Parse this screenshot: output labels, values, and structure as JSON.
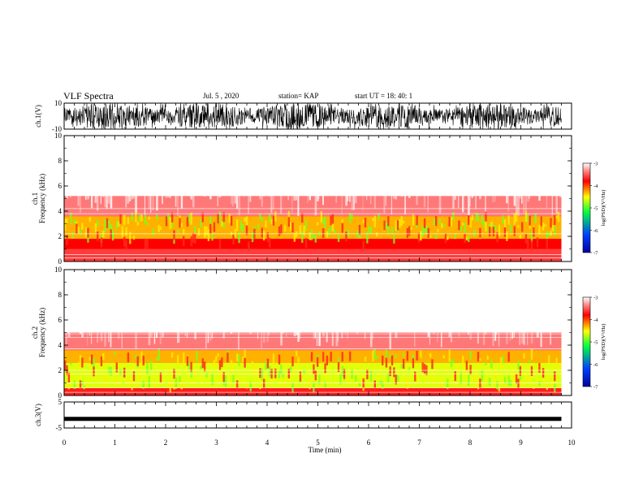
{
  "header": {
    "title": "VLF Spectra",
    "date": "Jul. 5 , 2020",
    "station": "station= KAP",
    "start_ut": "start UT =  18: 40: 1"
  },
  "chart_data": [
    {
      "type": "line",
      "panel": "ch1-waveform",
      "ylabel": "ch.1(V)",
      "ylim": [
        -10,
        10
      ],
      "yticks": [
        "10",
        "-10"
      ],
      "xlim": [
        0,
        10
      ],
      "data_extent": [
        0,
        9.8
      ],
      "note_values": "dense noisy waveform spanning roughly -10 to 10 V"
    },
    {
      "type": "heatmap",
      "panel": "ch1-spectrogram",
      "ylabel": "ch.1\nFrequency (kHz)",
      "ylim": [
        0,
        10
      ],
      "yticks": [
        "0",
        "2",
        "4",
        "6",
        "8",
        "10"
      ],
      "xlim": [
        0,
        10
      ],
      "colorbar": {
        "label": "log(PSD)(V²/Hz)",
        "range": [
          -7,
          -3
        ],
        "ticks": [
          "-3",
          "-4",
          "-5",
          "-6",
          "-7"
        ]
      },
      "bands_khz": [
        [
          0,
          1.0,
          -3.6
        ],
        [
          1.0,
          1.8,
          -3.8
        ],
        [
          1.8,
          3.6,
          -4.3
        ],
        [
          3.6,
          5.2,
          -3.4
        ],
        [
          5.2,
          10,
          -2.9
        ]
      ]
    },
    {
      "type": "heatmap",
      "panel": "ch2-spectrogram",
      "ylabel": "ch.2\nFrequency (kHz)",
      "ylim": [
        0,
        10
      ],
      "yticks": [
        "0",
        "2",
        "4",
        "6",
        "8",
        "10"
      ],
      "xlim": [
        0,
        10
      ],
      "colorbar": {
        "label": "log(PSD)(V²/Hz)",
        "range": [
          -7,
          -3
        ],
        "ticks": [
          "-3",
          "-4",
          "-5",
          "-6",
          "-7"
        ]
      },
      "bands_khz": [
        [
          0,
          0.6,
          -3.7
        ],
        [
          0.6,
          2.6,
          -4.6
        ],
        [
          2.6,
          3.6,
          -4.3
        ],
        [
          3.6,
          5.0,
          -3.4
        ],
        [
          5.0,
          10,
          -2.9
        ]
      ]
    },
    {
      "type": "line",
      "panel": "ch3-waveform",
      "ylabel": "ch.3(V)",
      "ylim": [
        -5,
        5
      ],
      "yticks": [
        "5",
        "-5"
      ],
      "xlim": [
        0,
        10
      ],
      "data_extent": [
        0,
        9.8
      ],
      "level": -1.5,
      "note_values": "flat thick trace near -1.5 V"
    }
  ],
  "x_axis": {
    "label": "Time (min)",
    "ticks": [
      "0",
      "1",
      "2",
      "3",
      "4",
      "5",
      "6",
      "7",
      "8",
      "9",
      "10"
    ]
  },
  "colors": {
    "axis": "#000000",
    "background": "#ffffff",
    "colormap": [
      "#0000a0",
      "#0040ff",
      "#00ff40",
      "#ffff00",
      "#ff0000",
      "#ffffff"
    ]
  }
}
